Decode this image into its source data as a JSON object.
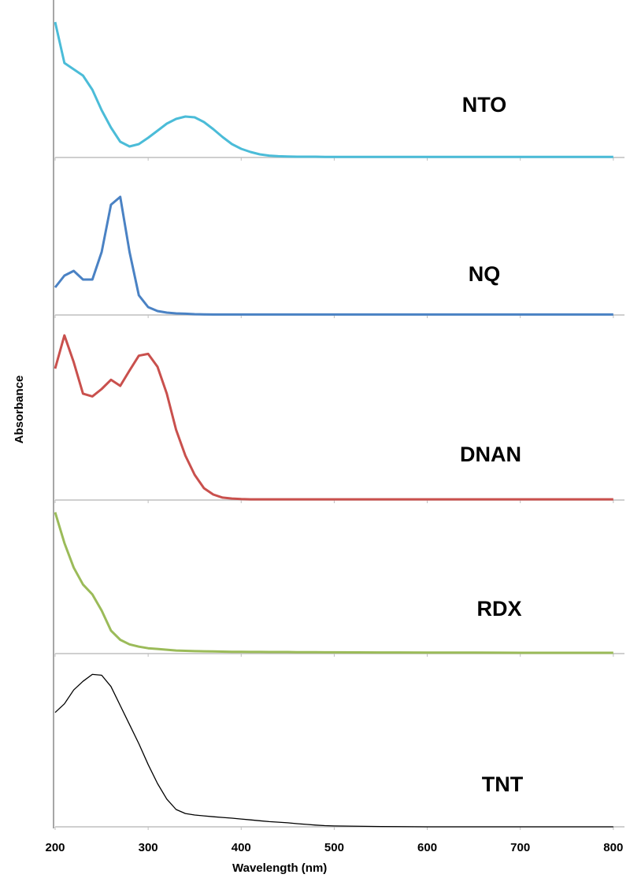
{
  "chart_data": {
    "type": "line",
    "xlabel": "Wavelength (nm)",
    "ylabel": "Absorbance",
    "x": [
      200,
      210,
      220,
      230,
      240,
      250,
      260,
      270,
      280,
      290,
      300,
      310,
      320,
      330,
      340,
      350,
      360,
      370,
      380,
      390,
      400,
      410,
      420,
      430,
      440,
      450,
      460,
      470,
      480,
      490,
      500,
      550,
      600,
      650,
      700,
      750,
      800
    ],
    "xlim": [
      200,
      812
    ],
    "xticks": [
      200,
      300,
      400,
      500,
      600,
      700,
      800
    ],
    "ylim": [
      0,
      1
    ],
    "series": [
      {
        "name": "NTO",
        "color": "#4bbcd8",
        "width": 3,
        "values": [
          0.86,
          0.6,
          0.56,
          0.52,
          0.43,
          0.3,
          0.19,
          0.1,
          0.07,
          0.085,
          0.125,
          0.17,
          0.215,
          0.245,
          0.26,
          0.255,
          0.225,
          0.18,
          0.13,
          0.085,
          0.055,
          0.035,
          0.02,
          0.012,
          0.008,
          0.006,
          0.005,
          0.005,
          0.005,
          0.004,
          0.004,
          0.004,
          0.004,
          0.004,
          0.004,
          0.004,
          0.004
        ]
      },
      {
        "name": "NQ",
        "color": "#4a82c4",
        "width": 3,
        "values": [
          0.175,
          0.25,
          0.28,
          0.225,
          0.225,
          0.4,
          0.7,
          0.75,
          0.4,
          0.125,
          0.05,
          0.025,
          0.015,
          0.01,
          0.008,
          0.005,
          0.004,
          0.003,
          0.003,
          0.003,
          0.003,
          0.003,
          0.003,
          0.003,
          0.003,
          0.003,
          0.003,
          0.003,
          0.003,
          0.003,
          0.003,
          0.003,
          0.003,
          0.003,
          0.003,
          0.003,
          0.003
        ]
      },
      {
        "name": "DNAN",
        "color": "#c9504d",
        "width": 3,
        "values": [
          0.71,
          0.89,
          0.745,
          0.575,
          0.56,
          0.6,
          0.65,
          0.617,
          0.7,
          0.78,
          0.79,
          0.72,
          0.575,
          0.38,
          0.24,
          0.136,
          0.064,
          0.03,
          0.013,
          0.008,
          0.005,
          0.004,
          0.004,
          0.004,
          0.004,
          0.004,
          0.004,
          0.004,
          0.004,
          0.004,
          0.004,
          0.004,
          0.004,
          0.004,
          0.004,
          0.004,
          0.004
        ]
      },
      {
        "name": "RDX",
        "color": "#9bbb59",
        "width": 3,
        "values": [
          0.92,
          0.72,
          0.56,
          0.45,
          0.385,
          0.28,
          0.15,
          0.09,
          0.06,
          0.045,
          0.035,
          0.03,
          0.025,
          0.02,
          0.018,
          0.016,
          0.015,
          0.014,
          0.013,
          0.012,
          0.012,
          0.011,
          0.011,
          0.01,
          0.01,
          0.01,
          0.009,
          0.009,
          0.009,
          0.008,
          0.008,
          0.007,
          0.006,
          0.006,
          0.005,
          0.005,
          0.005
        ]
      },
      {
        "name": "TNT",
        "color": "#000000",
        "width": 1.3,
        "values": [
          0.66,
          0.71,
          0.79,
          0.84,
          0.88,
          0.875,
          0.81,
          0.7,
          0.59,
          0.48,
          0.36,
          0.25,
          0.16,
          0.1,
          0.077,
          0.068,
          0.063,
          0.058,
          0.054,
          0.05,
          0.045,
          0.04,
          0.035,
          0.03,
          0.027,
          0.023,
          0.018,
          0.014,
          0.01,
          0.007,
          0.005,
          0.002,
          0,
          0,
          0,
          0,
          0
        ]
      }
    ]
  }
}
